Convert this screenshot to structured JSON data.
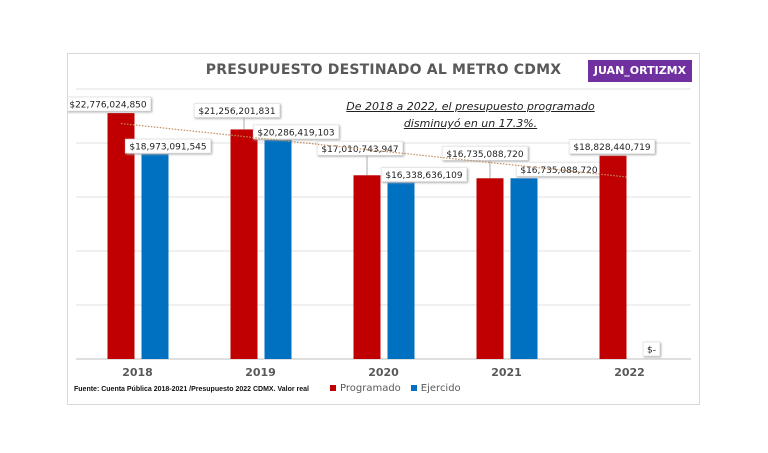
{
  "chart_data": {
    "type": "bar",
    "title": "PRESUPUESTO DESTINADO AL METRO CDMX",
    "categories": [
      "2018",
      "2019",
      "2020",
      "2021",
      "2022"
    ],
    "series": [
      {
        "name": "Programado",
        "color": "#c00000",
        "values": [
          22776024850,
          21256201831,
          17010743947,
          16735088720,
          18828440719
        ],
        "labels": [
          "$22,776,024,850",
          "$21,256,201,831",
          "$17,010,743,947",
          "$16,735,088,720",
          "$18,828,440,719"
        ]
      },
      {
        "name": "Ejercido",
        "color": "#0070c0",
        "values": [
          18973091545,
          20286419103,
          16338636109,
          16735088720,
          0
        ],
        "labels": [
          "$18,973,091,545",
          "$20,286,419,103",
          "$16,338,636,109",
          "$16,735,088,720",
          "$-"
        ]
      }
    ],
    "ylim": [
      0,
      25000000000
    ],
    "grid": true,
    "trendline": {
      "series": "Programado",
      "type": "linear",
      "style": "dotted",
      "color": "#c09060"
    },
    "annotation": [
      "De 2018 a 2022, el presupuesto programado",
      "disminuyó en un 17.3%."
    ],
    "legend_position": "bottom",
    "source": "Fuente: Cuenta Pública 2018-2021 /Presupuesto 2022 CDMX. Valor real"
  },
  "badge": "JUAN_ORTIZMX"
}
